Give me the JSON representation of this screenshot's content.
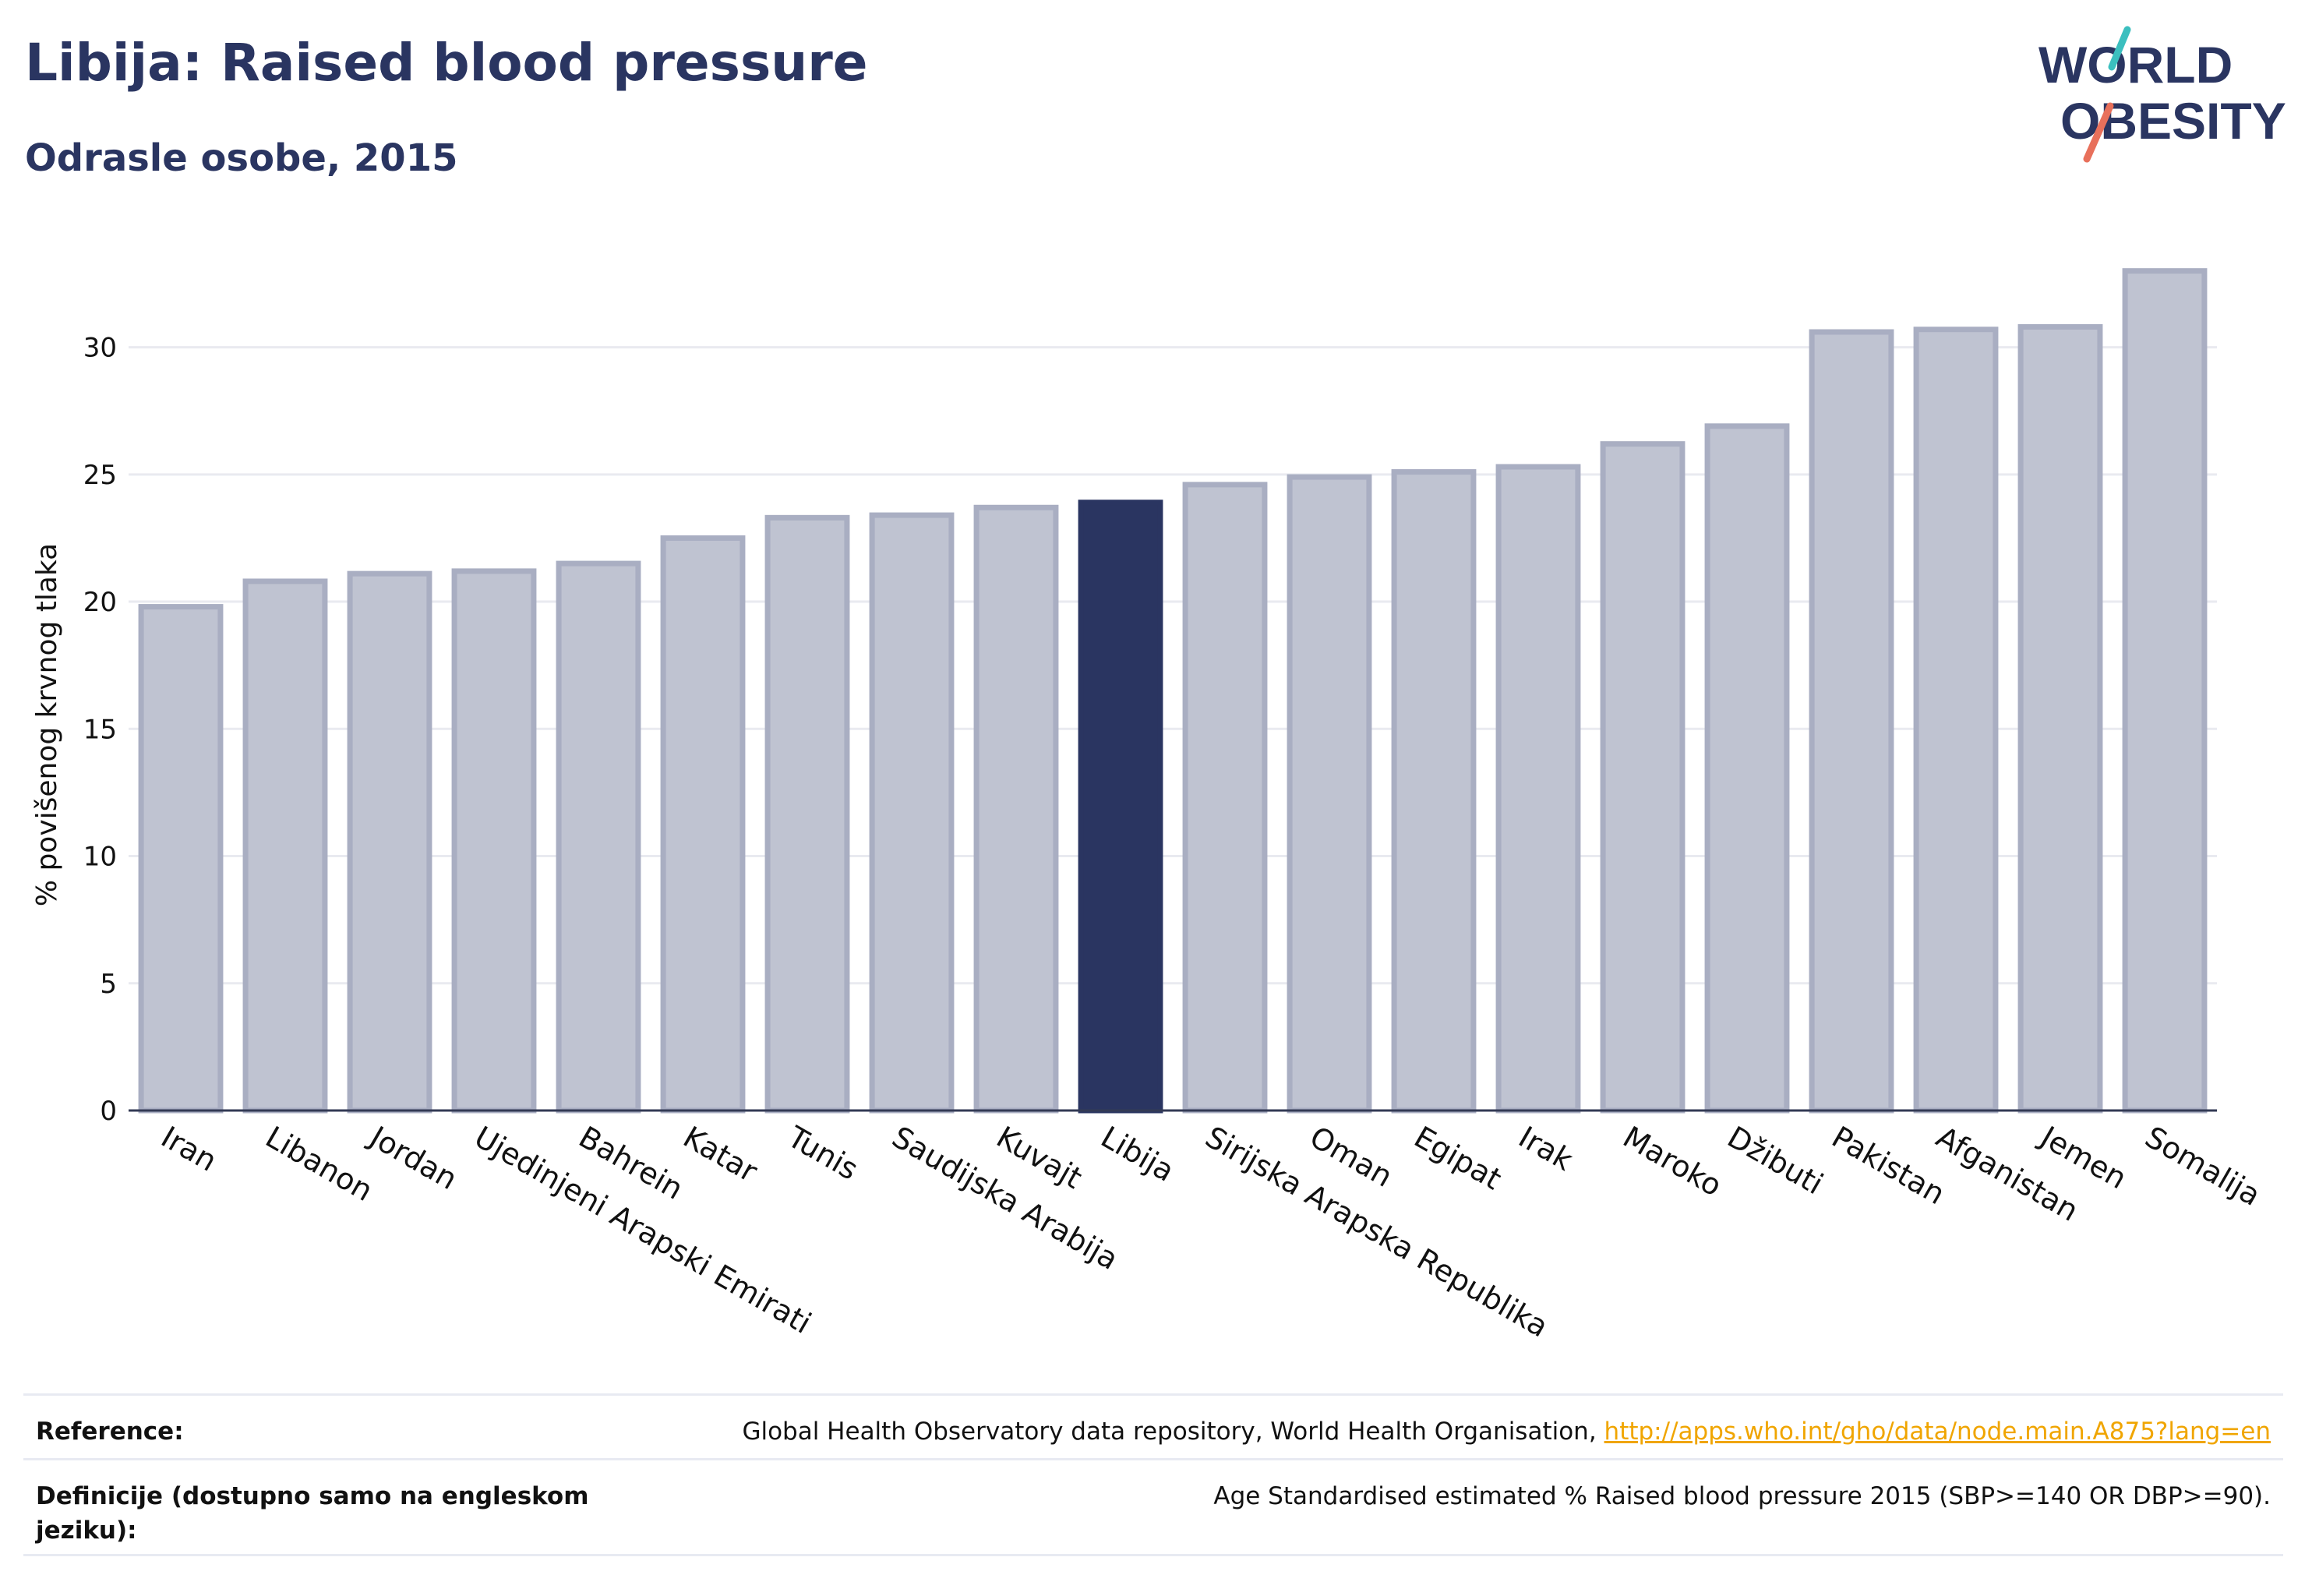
{
  "header": {
    "title": "Libija: Raised blood pressure",
    "subtitle": "Odrasle osobe, 2015"
  },
  "logo": {
    "line1": "WORLD",
    "line2": "OBESITY"
  },
  "colors": {
    "bar": "#bfc3d1",
    "bar_border": "#a9aec2",
    "highlight": "#2a3561",
    "grid": "#e9eaf0",
    "text": "#111111",
    "accent_teal": "#3bbfbf",
    "accent_coral": "#e8705b"
  },
  "chart_data": {
    "type": "bar",
    "ylabel": "% povišenog krvnog tlaka",
    "ylim": [
      0,
      34
    ],
    "yticks": [
      0,
      5,
      10,
      15,
      20,
      25,
      30
    ],
    "grid": true,
    "highlight": "Libija",
    "categories": [
      "Iran",
      "Libanon",
      "Jordan",
      "Ujedinjeni Arapski Emirati",
      "Bahrein",
      "Katar",
      "Tunis",
      "Saudijska Arabija",
      "Kuvajt",
      "Libija",
      "Sirijska Arapska Republika",
      "Oman",
      "Egipat",
      "Irak",
      "Maroko",
      "Džibuti",
      "Pakistan",
      "Afganistan",
      "Jemen",
      "Somalija"
    ],
    "values": [
      19.8,
      20.8,
      21.1,
      21.2,
      21.5,
      22.5,
      23.3,
      23.4,
      23.7,
      23.9,
      24.6,
      24.9,
      25.1,
      25.3,
      26.2,
      26.9,
      30.6,
      30.7,
      30.8,
      33.0
    ]
  },
  "footer": {
    "reference_label": "Reference:",
    "reference_text": "Global Health Observatory data repository, World Health Organisation, ",
    "reference_link": "http://apps.who.int/gho/data/node.main.A875?lang=en",
    "definition_label": "Definicije (dostupno samo na engleskom jeziku):",
    "definition_text": "Age Standardised estimated % Raised blood pressure 2015 (SBP>=140 OR DBP>=90)."
  }
}
